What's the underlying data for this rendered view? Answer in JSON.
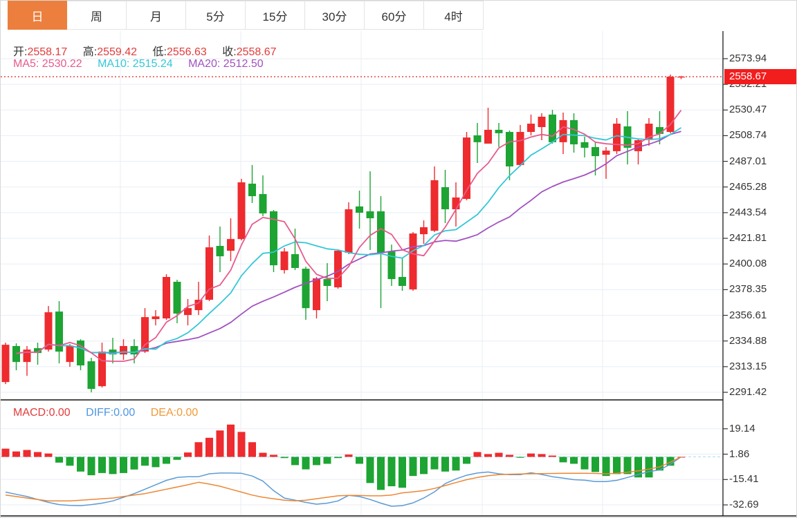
{
  "tabs": [
    {
      "label": "日",
      "active": true
    },
    {
      "label": "周",
      "active": false
    },
    {
      "label": "月",
      "active": false
    },
    {
      "label": "5分",
      "active": false
    },
    {
      "label": "15分",
      "active": false
    },
    {
      "label": "30分",
      "active": false
    },
    {
      "label": "60分",
      "active": false
    },
    {
      "label": "4时",
      "active": false
    }
  ],
  "info": {
    "open_label": "开:",
    "open": "2558.17",
    "high_label": "高:",
    "high": "2559.42",
    "low_label": "低:",
    "low": "2556.63",
    "close_label": "收:",
    "close": "2558.67"
  },
  "ma_info": {
    "ma5_label": "MA5:",
    "ma5": "2530.22",
    "ma10_label": "MA10:",
    "ma10": "2515.24",
    "ma20_label": "MA20:",
    "ma20": "2512.50"
  },
  "macd_info": {
    "macd_label": "MACD:",
    "macd": "0.00",
    "diff_label": "DIFF:",
    "diff": "0.00",
    "dea_label": "DEA:",
    "dea": "0.00"
  },
  "price_tag": "2558.67",
  "colors": {
    "up": "#ee2b2e",
    "down": "#1da433",
    "tag": "#f21d1d",
    "ma5": "#e75a8c",
    "ma10": "#33c7d8",
    "ma20": "#a151c0",
    "diff": "#5b9bd5",
    "dea": "#ed8633",
    "dashed_price": "#e33535",
    "zero_line": "#a9dcec",
    "tab_active": "#ec7f3e",
    "value_red": "#e23b3b",
    "diff_label": "#4f96e0",
    "dea_label": "#f09a37"
  },
  "chart_data": {
    "type": "candlestick",
    "panels": [
      {
        "name": "price",
        "ylim": [
          2285.0,
          2597.3
        ],
        "yticks": [
          2573.94,
          2552.21,
          2530.47,
          2508.74,
          2487.01,
          2465.28,
          2443.54,
          2421.81,
          2400.08,
          2378.35,
          2356.61,
          2334.88,
          2313.15,
          2291.42
        ],
        "last_price": 2558.67,
        "moving_average_windows": [
          5,
          10,
          20
        ],
        "candles": [
          [
            2300.1,
            2333.5,
            2298.4,
            2331.7
          ],
          [
            2330.6,
            2332.9,
            2310.1,
            2317.1
          ],
          [
            2317.1,
            2330.6,
            2305.4,
            2327.6
          ],
          [
            2328.8,
            2333.5,
            2314.8,
            2324.7
          ],
          [
            2327.6,
            2364.5,
            2325.9,
            2359.2
          ],
          [
            2359.8,
            2368.6,
            2315.9,
            2325.9
          ],
          [
            2317.1,
            2332.3,
            2313.0,
            2330.6
          ],
          [
            2335.3,
            2336.4,
            2310.1,
            2314.2
          ],
          [
            2317.7,
            2320.6,
            2291.4,
            2294.3
          ],
          [
            2296.6,
            2333.5,
            2295.5,
            2325.9
          ],
          [
            2327.6,
            2337.6,
            2315.9,
            2323.5
          ],
          [
            2323.5,
            2336.4,
            2318.9,
            2330.6
          ],
          [
            2330.6,
            2336.4,
            2315.9,
            2323.5
          ],
          [
            2325.9,
            2362.7,
            2324.7,
            2355.1
          ],
          [
            2353.4,
            2361.0,
            2348.1,
            2355.7
          ],
          [
            2354.0,
            2391.4,
            2352.8,
            2389.1
          ],
          [
            2385.0,
            2386.7,
            2349.9,
            2358.1
          ],
          [
            2356.9,
            2370.4,
            2348.1,
            2362.7
          ],
          [
            2361.0,
            2385.0,
            2356.9,
            2369.8
          ],
          [
            2369.8,
            2424.2,
            2368.6,
            2414.2
          ],
          [
            2415.4,
            2431.8,
            2393.2,
            2406.6
          ],
          [
            2411.3,
            2438.8,
            2402.5,
            2421.2
          ],
          [
            2421.2,
            2472.2,
            2420.1,
            2469.2
          ],
          [
            2468.1,
            2483.9,
            2451.7,
            2457.5
          ],
          [
            2459.3,
            2475.1,
            2440.5,
            2442.9
          ],
          [
            2444.7,
            2445.8,
            2393.2,
            2399.0
          ],
          [
            2394.9,
            2413.6,
            2392.0,
            2410.7
          ],
          [
            2408.4,
            2430.0,
            2394.9,
            2396.7
          ],
          [
            2396.1,
            2397.8,
            2352.8,
            2362.7
          ],
          [
            2361.0,
            2389.1,
            2354.0,
            2387.9
          ],
          [
            2387.3,
            2400.8,
            2368.6,
            2381.5
          ],
          [
            2380.3,
            2412.5,
            2379.1,
            2411.3
          ],
          [
            2409.6,
            2452.3,
            2408.4,
            2446.4
          ],
          [
            2448.8,
            2462.2,
            2430.0,
            2443.5
          ],
          [
            2444.7,
            2478.6,
            2411.9,
            2438.8
          ],
          [
            2444.7,
            2457.5,
            2362.7,
            2409.6
          ],
          [
            2410.7,
            2416.5,
            2381.5,
            2387.3
          ],
          [
            2389.1,
            2405.5,
            2377.4,
            2381.5
          ],
          [
            2378.6,
            2427.1,
            2377.4,
            2425.9
          ],
          [
            2425.3,
            2437.0,
            2417.1,
            2431.2
          ],
          [
            2428.2,
            2482.7,
            2427.1,
            2471.0
          ],
          [
            2465.1,
            2479.8,
            2434.7,
            2446.4
          ],
          [
            2446.4,
            2469.2,
            2431.8,
            2456.4
          ],
          [
            2455.2,
            2511.9,
            2454.0,
            2507.2
          ],
          [
            2509.0,
            2519.5,
            2485.6,
            2503.2
          ],
          [
            2502.0,
            2532.4,
            2502.0,
            2513.7
          ],
          [
            2513.7,
            2519.5,
            2499.1,
            2510.8
          ],
          [
            2511.9,
            2513.1,
            2471.0,
            2482.7
          ],
          [
            2483.9,
            2517.8,
            2482.7,
            2511.9
          ],
          [
            2511.9,
            2526.6,
            2509.0,
            2518.9
          ],
          [
            2516.0,
            2527.7,
            2504.9,
            2524.8
          ],
          [
            2526.6,
            2530.6,
            2502.0,
            2503.2
          ],
          [
            2503.2,
            2528.3,
            2493.2,
            2521.9
          ],
          [
            2521.9,
            2527.7,
            2494.4,
            2501.4
          ],
          [
            2503.2,
            2507.8,
            2490.3,
            2498.5
          ],
          [
            2499.1,
            2503.2,
            2475.1,
            2491.4
          ],
          [
            2492.6,
            2499.1,
            2472.2,
            2496.1
          ],
          [
            2495.6,
            2523.6,
            2493.2,
            2518.9
          ],
          [
            2516.6,
            2529.5,
            2484.4,
            2498.5
          ],
          [
            2495.6,
            2506.1,
            2484.4,
            2504.9
          ],
          [
            2506.1,
            2523.6,
            2500.2,
            2518.9
          ],
          [
            2516.0,
            2529.5,
            2501.4,
            2510.2
          ],
          [
            2511.9,
            2560.5,
            2510.8,
            2558.67
          ],
          [
            2558.17,
            2559.42,
            2556.63,
            2558.67
          ]
        ]
      },
      {
        "name": "macd",
        "ylim": [
          -40.2,
          38.8
        ],
        "yticks": [
          19.14,
          1.86,
          -15.41,
          -32.69
        ],
        "histogram": [
          5.6,
          3.7,
          4.7,
          3.3,
          2.3,
          -3.9,
          -6.0,
          -10.0,
          -12.5,
          -11.0,
          -11.7,
          -11.0,
          -8.6,
          -6.0,
          -7.0,
          -4.7,
          -2.0,
          3.0,
          10.0,
          13.0,
          18.0,
          22.0,
          17.0,
          10.0,
          2.8,
          1.4,
          -0.8,
          -5.6,
          -8.5,
          -5.6,
          -4.7,
          -0.8,
          1.6,
          -4.7,
          -17.8,
          -22.5,
          -20.0,
          -21.0,
          -13.0,
          -11.7,
          -8.5,
          -10.0,
          -9.3,
          -4.7,
          3.3,
          1.9,
          2.8,
          1.4,
          -0.6,
          2.3,
          1.9,
          0.9,
          -3.7,
          -4.7,
          -8.5,
          -10.3,
          -13.0,
          -11.7,
          -11.7,
          -14.0,
          -14.0,
          -9.3,
          -6.0,
          0.0
        ],
        "diff": [
          -24,
          -25.5,
          -27,
          -29,
          -31,
          -32.5,
          -33,
          -33.2,
          -32.5,
          -31.5,
          -30,
          -27.5,
          -25,
          -22,
          -19,
          -16,
          -14,
          -13.5,
          -13.5,
          -11.5,
          -11,
          -11,
          -11.2,
          -13,
          -16.5,
          -23,
          -28,
          -29.5,
          -31,
          -32.2,
          -31.5,
          -30,
          -26.2,
          -27,
          -29,
          -31.5,
          -33.6,
          -33.2,
          -31.3,
          -28,
          -23.8,
          -18.2,
          -15,
          -12.5,
          -11,
          -10.3,
          -11.5,
          -12.1,
          -12.1,
          -10.8,
          -12,
          -13.5,
          -14.5,
          -15.5,
          -15.9,
          -16.8,
          -16.8,
          -16,
          -14,
          -12,
          -10,
          -8.9,
          -5,
          0.0
        ],
        "dea": [
          -26,
          -27,
          -28,
          -29,
          -30,
          -30,
          -30,
          -29.5,
          -29,
          -28.5,
          -28,
          -27,
          -26,
          -25,
          -23.5,
          -22,
          -20.5,
          -19,
          -17.3,
          -18.5,
          -20,
          -22,
          -24,
          -26,
          -27.5,
          -28.5,
          -29.5,
          -29.9,
          -29.5,
          -28.5,
          -27.5,
          -26.5,
          -26.2,
          -26.3,
          -26.5,
          -26.5,
          -26,
          -24.5,
          -23.8,
          -23,
          -21.5,
          -19.5,
          -17.5,
          -15.5,
          -14,
          -12.8,
          -12.1,
          -11.8,
          -11.6,
          -11.5,
          -11.4,
          -11.3,
          -11.2,
          -11.2,
          -11.2,
          -11.3,
          -11.5,
          -11.2,
          -10.5,
          -9.5,
          -8.3,
          -6.8,
          -3.5,
          0.0
        ]
      }
    ]
  }
}
